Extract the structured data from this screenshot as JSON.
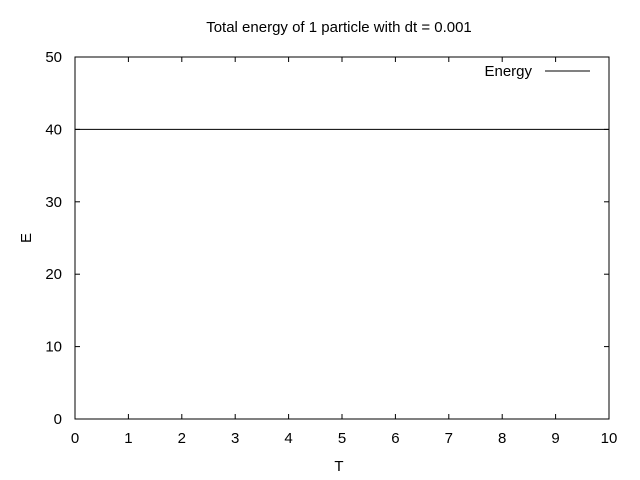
{
  "chart_data": {
    "type": "line",
    "title": "Total energy of 1 particle with dt = 0.001",
    "xlabel": "T",
    "ylabel": "E",
    "xlim": [
      0,
      10
    ],
    "ylim": [
      0,
      50
    ],
    "x_ticks": [
      0,
      1,
      2,
      3,
      4,
      5,
      6,
      7,
      8,
      9,
      10
    ],
    "y_ticks": [
      0,
      10,
      20,
      30,
      40,
      50
    ],
    "grid": false,
    "legend_position": "top-right",
    "series": [
      {
        "name": "Energy",
        "color": "#000000",
        "x": [
          0,
          10
        ],
        "y": [
          40,
          40
        ]
      }
    ]
  }
}
